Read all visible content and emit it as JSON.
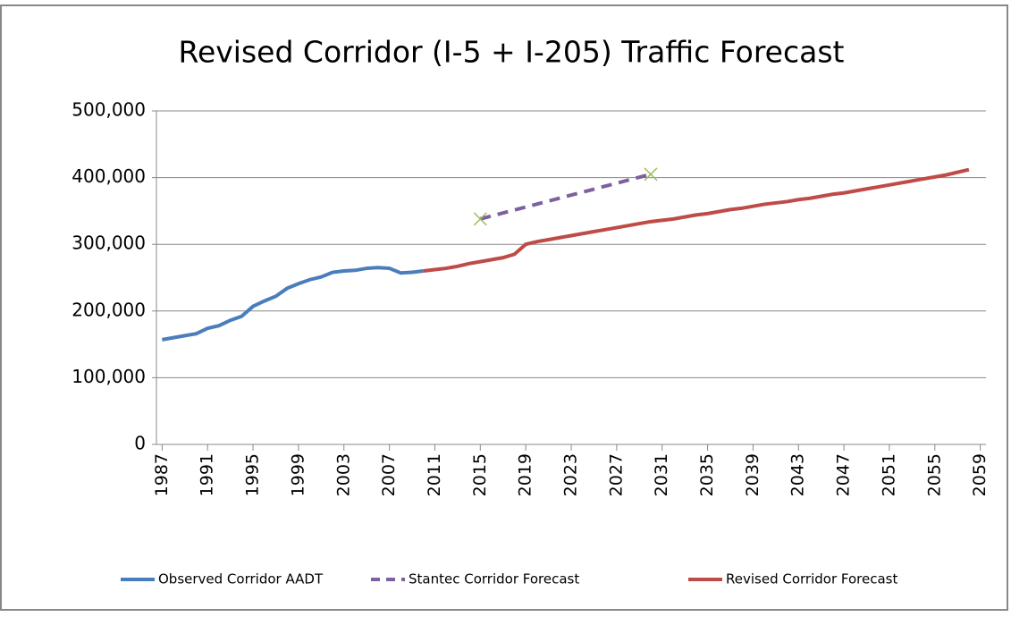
{
  "chart_data": {
    "type": "line",
    "title": "Revised Corridor (I-5 + I-205) Traffic Forecast",
    "xlim": [
      1986.5,
      2059.5
    ],
    "xticks": [
      1987,
      1991,
      1995,
      1999,
      2003,
      2007,
      2011,
      2015,
      2019,
      2023,
      2027,
      2031,
      2035,
      2039,
      2043,
      2047,
      2051,
      2055,
      2059
    ],
    "ylim": [
      0,
      500000
    ],
    "yticks": [
      0,
      {
        "value": 100000,
        "label": "100,000"
      },
      {
        "value": 200000,
        "label": "200,000"
      },
      {
        "value": 300000,
        "label": "300,000"
      },
      {
        "value": 400000,
        "label": "400,000"
      },
      {
        "value": 500000,
        "label": "500,000"
      }
    ],
    "grid": true,
    "legend": "bottom",
    "series": [
      {
        "name": "Observed Corridor AADT",
        "color": "#4a7ebb",
        "style": "solid",
        "x": [
          1987,
          1988,
          1989,
          1990,
          1991,
          1992,
          1993,
          1994,
          1995,
          1996,
          1997,
          1998,
          1999,
          2000,
          2001,
          2002,
          2003,
          2004,
          2005,
          2006,
          2007,
          2008,
          2009,
          2010
        ],
        "values": [
          157000,
          160000,
          163000,
          166000,
          174000,
          178000,
          186000,
          192000,
          207000,
          215000,
          222000,
          234000,
          241000,
          247000,
          251000,
          258000,
          260000,
          261000,
          264000,
          265000,
          264000,
          257000,
          258000,
          260000
        ]
      },
      {
        "name": "Stantec Corridor Forecast",
        "color": "#7d60a0",
        "style": "dashed",
        "marker": "x",
        "x": [
          2015,
          2030
        ],
        "values": [
          338000,
          405000
        ]
      },
      {
        "name": "Revised Corridor Forecast",
        "color": "#be4b48",
        "style": "solid",
        "x": [
          2010,
          2011,
          2012,
          2013,
          2014,
          2015,
          2016,
          2017,
          2018,
          2019,
          2020,
          2021,
          2022,
          2023,
          2024,
          2025,
          2026,
          2027,
          2028,
          2029,
          2030,
          2031,
          2032,
          2033,
          2034,
          2035,
          2036,
          2037,
          2038,
          2039,
          2040,
          2041,
          2042,
          2043,
          2044,
          2045,
          2046,
          2047,
          2048,
          2049,
          2050,
          2051,
          2052,
          2053,
          2054,
          2055,
          2056,
          2057,
          2058
        ],
        "values": [
          260000,
          262000,
          264000,
          267000,
          271000,
          274000,
          277000,
          280000,
          285000,
          300000,
          304000,
          307000,
          310000,
          313000,
          316000,
          319000,
          322000,
          325000,
          328000,
          331000,
          334000,
          336000,
          338000,
          341000,
          344000,
          346000,
          349000,
          352000,
          354000,
          357000,
          360000,
          362000,
          364000,
          367000,
          369000,
          372000,
          375000,
          377000,
          380000,
          383000,
          386000,
          389000,
          392000,
          395000,
          398000,
          401000,
          404000,
          408000,
          412000
        ]
      }
    ]
  }
}
